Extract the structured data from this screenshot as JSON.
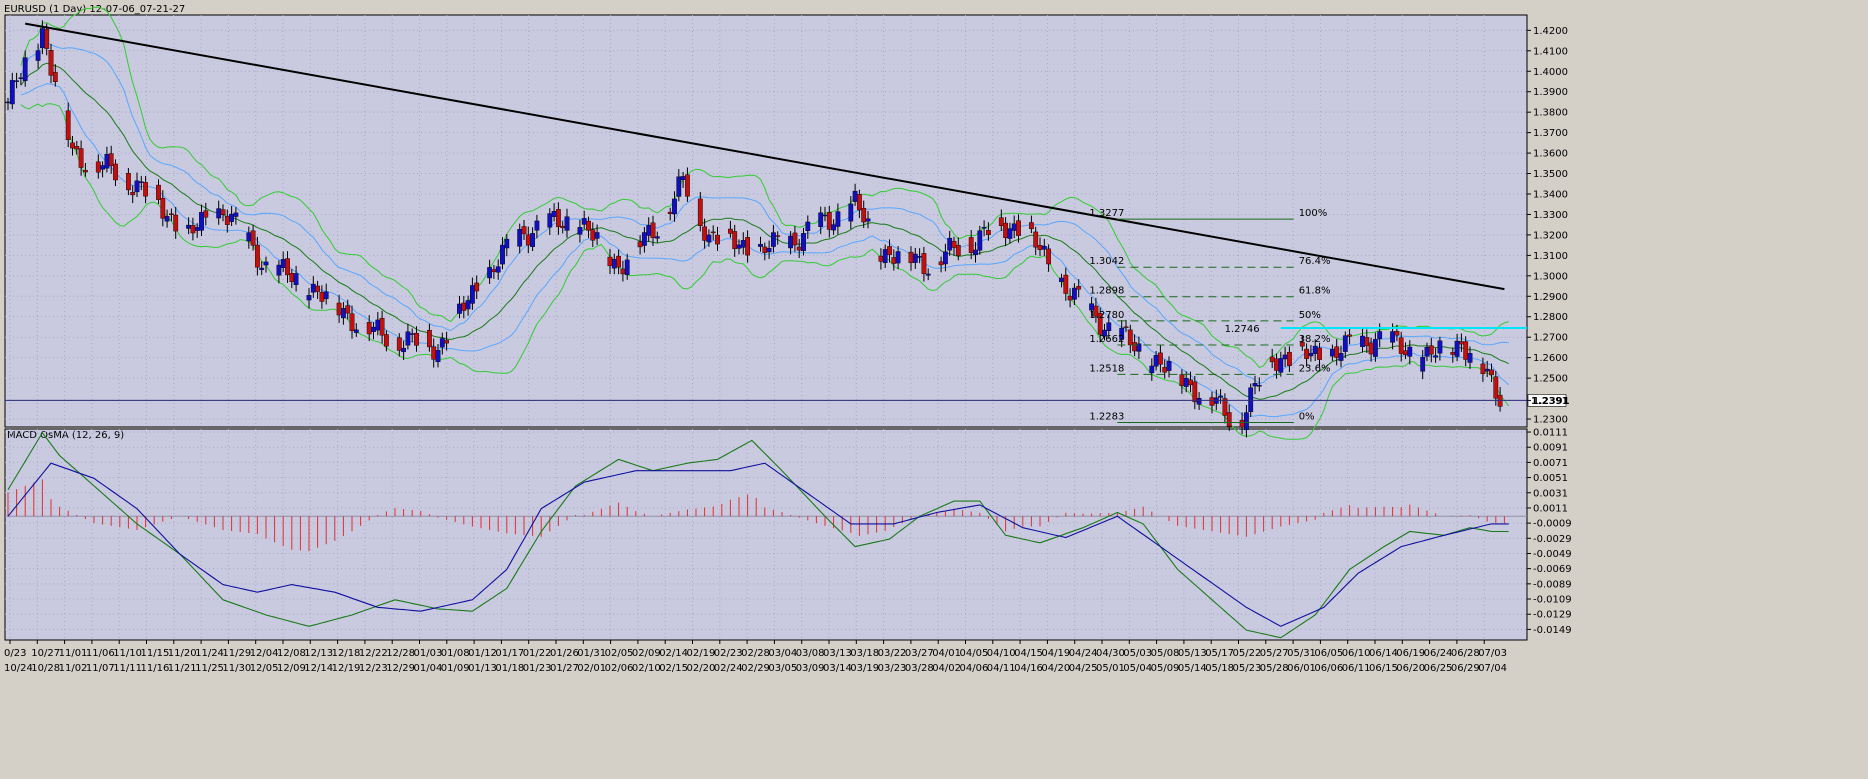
{
  "window_title": "EURUSD (1 Day)  12-07-06_07-21-27",
  "colors": {
    "panel_bg": "#c9c9df",
    "candle_bull": "#1010c0",
    "candle_bear": "#c01010",
    "bb_outer": "#33cc33",
    "bb_mid": "#1a7a1a",
    "bb_inner": "#5aa7ff",
    "trendline": "#000000",
    "cyan_level": "#00e5ff",
    "macd_line": "#1010a0",
    "signal_line": "#1a7a1a",
    "osma_bar": "#e03030",
    "fib_line": "#1a6a1a"
  },
  "chart_data": [
    {
      "type": "candlestick",
      "symbol": "EURUSD",
      "timeframe": "1 Day",
      "ylim": [
        1.2261,
        1.4275
      ],
      "y_ticks": [
        "1.4200",
        "1.4100",
        "1.4000",
        "1.3900",
        "1.3800",
        "1.3700",
        "1.3600",
        "1.3500",
        "1.3400",
        "1.3300",
        "1.3200",
        "1.3100",
        "1.3000",
        "1.2900",
        "1.2800",
        "1.2700",
        "1.2600",
        "1.2500",
        "1.2391",
        "1.2300"
      ],
      "current_price": "1.2391",
      "close_path": [
        [
          0,
          1.385
        ],
        [
          8,
          1.42
        ],
        [
          15,
          1.36
        ],
        [
          30,
          1.345
        ],
        [
          42,
          1.32
        ],
        [
          50,
          1.333
        ],
        [
          60,
          1.305
        ],
        [
          70,
          1.295
        ],
        [
          85,
          1.272
        ],
        [
          100,
          1.265
        ],
        [
          110,
          1.297
        ],
        [
          120,
          1.322
        ],
        [
          132,
          1.328
        ],
        [
          142,
          1.305
        ],
        [
          150,
          1.322
        ],
        [
          157,
          1.345
        ],
        [
          163,
          1.32
        ],
        [
          175,
          1.312
        ],
        [
          185,
          1.32
        ],
        [
          197,
          1.335
        ],
        [
          203,
          1.312
        ],
        [
          215,
          1.306
        ],
        [
          228,
          1.322
        ],
        [
          236,
          1.325
        ],
        [
          242,
          1.305
        ],
        [
          250,
          1.285
        ],
        [
          262,
          1.265
        ],
        [
          275,
          1.247
        ],
        [
          286,
          1.228
        ],
        [
          294,
          1.26
        ],
        [
          308,
          1.262
        ],
        [
          318,
          1.27
        ],
        [
          330,
          1.26
        ],
        [
          338,
          1.268
        ],
        [
          348,
          1.239
        ]
      ],
      "trendline": {
        "from": [
          4,
          1.4233
        ],
        "to": [
          348,
          1.2935
        ]
      },
      "cyan_level": 1.2745,
      "cyan_from_index": 296,
      "fibonacci": {
        "from_index": 258,
        "to_index": 299,
        "levels": [
          {
            "price": 1.3277,
            "price_label": "1.3277",
            "pct_label": "100%"
          },
          {
            "price": 1.3042,
            "price_label": "1.3042",
            "pct_label": "76.4%"
          },
          {
            "price": 1.2898,
            "price_label": "1.2898",
            "pct_label": "61.8%"
          },
          {
            "price": 1.278,
            "price_label": "1.2780",
            "pct_label": "50%"
          },
          {
            "price": 1.2662,
            "price_label": "1.2662",
            "pct_label": "38.2%"
          },
          {
            "price": 1.2518,
            "price_label": "1.2518",
            "pct_label": "23.6%"
          },
          {
            "price": 1.2283,
            "price_label": "1.2283",
            "pct_label": "0%"
          }
        ],
        "annotation": {
          "index": 282,
          "price": 1.2746,
          "label": "1.2746"
        }
      }
    },
    {
      "type": "line",
      "title": "MACD OsMA (12, 26, 9)",
      "ylim": [
        -0.0163,
        0.0115
      ],
      "y_ticks": [
        "0.0111",
        "0.0091",
        "0.0071",
        "0.0051",
        "0.0031",
        "0.0011",
        "-0.0009",
        "-0.0029",
        "-0.0049",
        "-0.0069",
        "-0.0089",
        "-0.0109",
        "-0.0129",
        "-0.0149"
      ],
      "signal_path": [
        [
          0,
          0.0035
        ],
        [
          8,
          0.011
        ],
        [
          12,
          0.008
        ],
        [
          20,
          0.004
        ],
        [
          30,
          -0.001
        ],
        [
          40,
          -0.005
        ],
        [
          50,
          -0.011
        ],
        [
          60,
          -0.013
        ],
        [
          70,
          -0.0145
        ],
        [
          80,
          -0.013
        ],
        [
          90,
          -0.011
        ],
        [
          100,
          -0.0122
        ],
        [
          108,
          -0.0125
        ],
        [
          116,
          -0.0095
        ],
        [
          124,
          -0.002
        ],
        [
          132,
          0.004
        ],
        [
          142,
          0.0075
        ],
        [
          150,
          0.006
        ],
        [
          158,
          0.007
        ],
        [
          165,
          0.0075
        ],
        [
          173,
          0.01
        ],
        [
          180,
          0.006
        ],
        [
          190,
          0.0
        ],
        [
          197,
          -0.004
        ],
        [
          205,
          -0.003
        ],
        [
          212,
          0.0
        ],
        [
          220,
          0.002
        ],
        [
          226,
          0.002
        ],
        [
          232,
          -0.0025
        ],
        [
          240,
          -0.0035
        ],
        [
          250,
          -0.0015
        ],
        [
          258,
          0.0005
        ],
        [
          264,
          -0.001
        ],
        [
          272,
          -0.007
        ],
        [
          280,
          -0.011
        ],
        [
          288,
          -0.015
        ],
        [
          296,
          -0.016
        ],
        [
          304,
          -0.013
        ],
        [
          312,
          -0.007
        ],
        [
          320,
          -0.004
        ],
        [
          326,
          -0.002
        ],
        [
          334,
          -0.0025
        ],
        [
          340,
          -0.0015
        ],
        [
          345,
          -0.002
        ]
      ],
      "macd_path": [
        [
          0,
          0.0
        ],
        [
          10,
          0.007
        ],
        [
          20,
          0.005
        ],
        [
          30,
          0.001
        ],
        [
          40,
          -0.005
        ],
        [
          50,
          -0.009
        ],
        [
          58,
          -0.01
        ],
        [
          66,
          -0.009
        ],
        [
          76,
          -0.01
        ],
        [
          86,
          -0.012
        ],
        [
          96,
          -0.0125
        ],
        [
          108,
          -0.011
        ],
        [
          116,
          -0.007
        ],
        [
          124,
          0.001
        ],
        [
          134,
          0.0045
        ],
        [
          146,
          0.006
        ],
        [
          158,
          0.006
        ],
        [
          168,
          0.006
        ],
        [
          176,
          0.007
        ],
        [
          186,
          0.003
        ],
        [
          196,
          -0.001
        ],
        [
          206,
          -0.001
        ],
        [
          216,
          0.0005
        ],
        [
          226,
          0.0015
        ],
        [
          236,
          -0.0015
        ],
        [
          246,
          -0.0028
        ],
        [
          258,
          0.0
        ],
        [
          268,
          -0.004
        ],
        [
          278,
          -0.008
        ],
        [
          288,
          -0.012
        ],
        [
          296,
          -0.0145
        ],
        [
          306,
          -0.012
        ],
        [
          314,
          -0.0075
        ],
        [
          324,
          -0.004
        ],
        [
          334,
          -0.0025
        ],
        [
          345,
          -0.001
        ]
      ]
    }
  ],
  "x_labels_top": [
    "0/23",
    "10/27",
    "11/01",
    "11/06",
    "11/10",
    "11/15",
    "11/20",
    "11/24",
    "11/29",
    "12/04",
    "12/08",
    "12/13",
    "12/18",
    "12/22",
    "12/28",
    "01/03",
    "01/08",
    "01/12",
    "01/17",
    "01/22",
    "01/26",
    "01/31",
    "02/05",
    "02/09",
    "02/14",
    "02/19",
    "02/23",
    "02/28",
    "03/04",
    "03/08",
    "03/13",
    "03/18",
    "03/22",
    "03/27",
    "04/01",
    "04/05",
    "04/10",
    "04/15",
    "04/19",
    "04/24",
    "04/30",
    "05/03",
    "05/08",
    "05/13",
    "05/17",
    "05/22",
    "05/27",
    "05/31",
    "06/05",
    "06/10",
    "06/14",
    "06/19",
    "06/24",
    "06/28",
    "07/03"
  ],
  "x_labels_bottom": [
    "10/24",
    "10/28",
    "11/02",
    "11/07",
    "11/11",
    "11/16",
    "11/21",
    "11/25",
    "11/30",
    "12/05",
    "12/09",
    "12/14",
    "12/19",
    "12/23",
    "12/29",
    "01/04",
    "01/09",
    "01/13",
    "01/18",
    "01/23",
    "01/27",
    "02/01",
    "02/06",
    "02/10",
    "02/15",
    "02/20",
    "02/24",
    "02/29",
    "03/05",
    "03/09",
    "03/14",
    "03/19",
    "03/23",
    "03/28",
    "04/02",
    "04/06",
    "04/11",
    "04/16",
    "04/20",
    "04/25",
    "05/01",
    "05/04",
    "05/09",
    "05/14",
    "05/18",
    "05/23",
    "05/28",
    "06/01",
    "06/06",
    "06/11",
    "06/15",
    "06/20",
    "06/25",
    "06/29",
    "07/04"
  ]
}
